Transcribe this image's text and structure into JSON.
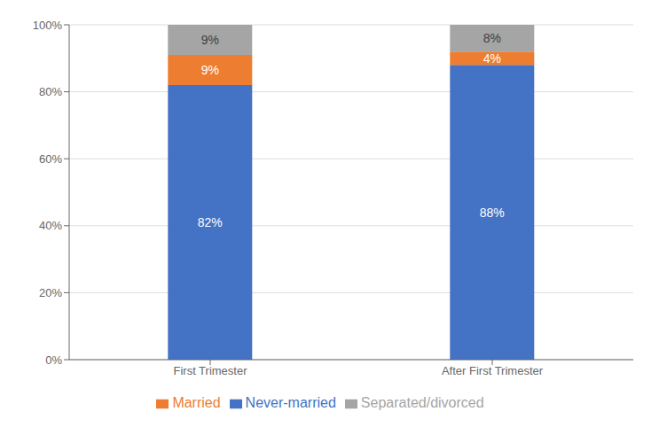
{
  "chart_data": {
    "type": "bar",
    "stacked": true,
    "categories": [
      "First Trimester",
      "After First Trimester"
    ],
    "series": [
      {
        "name": "Never-married",
        "color": "#4472C4",
        "values": [
          0.82,
          0.88
        ],
        "value_labels": [
          "82%",
          "88%"
        ]
      },
      {
        "name": "Married",
        "color": "#ED7D31",
        "values": [
          0.09,
          0.04
        ],
        "value_labels": [
          "9%",
          "4%"
        ]
      },
      {
        "name": "Separated/divorced",
        "color": "#A5A5A5",
        "values": [
          0.09,
          0.08
        ],
        "value_labels": [
          "9%",
          "8%"
        ]
      }
    ],
    "ylim": [
      0,
      1.0
    ],
    "yticks": [
      {
        "value": 0,
        "label": "0%"
      },
      {
        "value": 0.2,
        "label": "20%"
      },
      {
        "value": 0.4,
        "label": "40%"
      },
      {
        "value": 0.6,
        "label": "60%"
      },
      {
        "value": 0.8,
        "label": "80%"
      },
      {
        "value": 1.0,
        "label": "100%"
      }
    ],
    "grid": true,
    "legend": "bottom",
    "data_labels": true
  }
}
